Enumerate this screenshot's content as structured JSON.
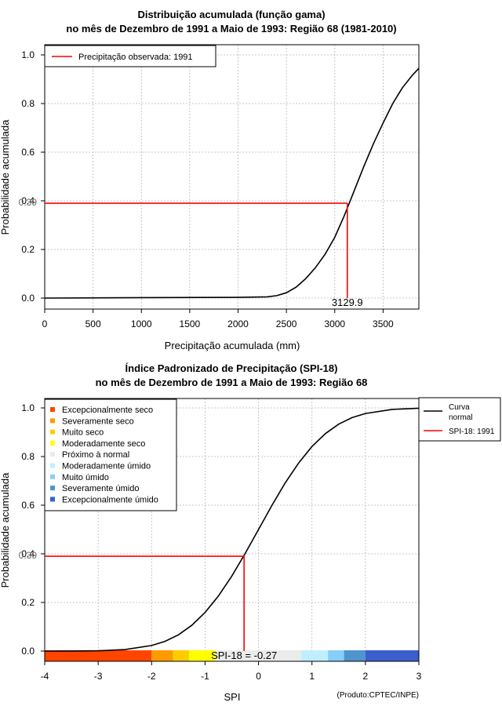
{
  "chart_data": [
    {
      "type": "line",
      "title": "Distribuição acumulada (função gama)",
      "subtitle": "no mês de Dezembro de 1991 a Maio de 1993: Região 68 (1981-2010)",
      "xlabel": "Precipitação acumulada (mm)",
      "ylabel": "Probabilidade acumulada",
      "xlim": [
        0,
        3870
      ],
      "ylim": [
        0,
        1.0
      ],
      "xticks": [
        0,
        500,
        1000,
        1500,
        2000,
        2500,
        3000,
        3500
      ],
      "yticks": [
        0.0,
        0.2,
        0.4,
        0.6,
        0.8,
        1.0
      ],
      "ytick_labels": [
        "0.0",
        "0.2",
        "0.4",
        "0.6",
        "0.8",
        "1.0"
      ],
      "grid": true,
      "series": [
        {
          "name": "gamma-cdf",
          "color": "#000000",
          "x": [
            0,
            1000,
            2000,
            2300,
            2400,
            2500,
            2600,
            2700,
            2800,
            2900,
            3000,
            3100,
            3200,
            3300,
            3400,
            3500,
            3600,
            3700,
            3800,
            3870
          ],
          "y": [
            0,
            0.002,
            0.003,
            0.005,
            0.01,
            0.022,
            0.045,
            0.08,
            0.125,
            0.18,
            0.25,
            0.34,
            0.44,
            0.54,
            0.635,
            0.72,
            0.8,
            0.865,
            0.915,
            0.945
          ]
        }
      ],
      "observed": {
        "x": 3129.9,
        "y": 0.39,
        "x_label": "3129.9",
        "y_label": "0.39",
        "color": "#ff0000"
      },
      "legend": {
        "position": "top-left",
        "entries": [
          {
            "label": "Precipitação observada: 1991",
            "color": "#ff0000"
          }
        ]
      }
    },
    {
      "type": "line",
      "title": "Índice Padronizado de Precipitação (SPI-18)",
      "subtitle": "no mês de Dezembro de 1991 a Maio de 1993: Região 68",
      "xlabel": "SPI",
      "ylabel": "Probabilidade acumulada",
      "xlim": [
        -4,
        3
      ],
      "ylim": [
        0,
        1.0
      ],
      "xticks": [
        -4,
        -3,
        -2,
        -1,
        0,
        1,
        2,
        3
      ],
      "yticks": [
        0.0,
        0.2,
        0.4,
        0.6,
        0.8,
        1.0
      ],
      "ytick_labels": [
        "0.0",
        "0.2",
        "0.4",
        "0.6",
        "0.8",
        "1.0"
      ],
      "grid": true,
      "series": [
        {
          "name": "normal-cdf",
          "color": "#000000",
          "x": [
            -4,
            -3.5,
            -3,
            -2.5,
            -2,
            -1.75,
            -1.5,
            -1.25,
            -1,
            -0.75,
            -0.5,
            -0.25,
            0,
            0.25,
            0.5,
            0.75,
            1,
            1.25,
            1.5,
            1.75,
            2,
            2.5,
            3
          ],
          "y": [
            3.17e-05,
            0.000233,
            0.00135,
            0.00621,
            0.02275,
            0.04006,
            0.06681,
            0.10565,
            0.15866,
            0.22663,
            0.30854,
            0.40129,
            0.5,
            0.59871,
            0.69146,
            0.77337,
            0.84134,
            0.89435,
            0.93319,
            0.95994,
            0.97725,
            0.99379,
            0.99865
          ]
        }
      ],
      "observed": {
        "x": -0.27,
        "y": 0.39,
        "y_label": "0.39",
        "annotation": "SPI-18 = -0.27",
        "color": "#ff0000"
      },
      "color_bar": [
        {
          "from": -4,
          "to": -2,
          "color": "#ff4500"
        },
        {
          "from": -2,
          "to": -1.6,
          "color": "#ff9a00"
        },
        {
          "from": -1.6,
          "to": -1.3,
          "color": "#ffcc00"
        },
        {
          "from": -1.3,
          "to": -0.8,
          "color": "#ffff00"
        },
        {
          "from": -0.8,
          "to": 0.8,
          "color": "#ebebeb"
        },
        {
          "from": 0.8,
          "to": 1.3,
          "color": "#bfefff"
        },
        {
          "from": 1.3,
          "to": 1.6,
          "color": "#87cefa"
        },
        {
          "from": 1.6,
          "to": 2,
          "color": "#4f94cd"
        },
        {
          "from": 2,
          "to": 3,
          "color": "#3a5fcd"
        }
      ],
      "class_legend": [
        {
          "label": "Excepcionalmente seco",
          "color": "#ff4500"
        },
        {
          "label": "Severamente seco",
          "color": "#ff9a00"
        },
        {
          "label": "Muito seco",
          "color": "#ffcc00"
        },
        {
          "label": "Moderadamente seco",
          "color": "#ffff00"
        },
        {
          "label": "Próximo à normal",
          "color": "#ebebeb"
        },
        {
          "label": "Moderadamente úmido",
          "color": "#bfefff"
        },
        {
          "label": "Muito úmido",
          "color": "#87cefa"
        },
        {
          "label": "Severamente úmido",
          "color": "#4f94cd"
        },
        {
          "label": "Excepcionalmente úmido",
          "color": "#3a5fcd"
        }
      ],
      "curve_legend": {
        "position": "top-right",
        "entries": [
          {
            "label_line1": "Curva",
            "label_line2": "normal",
            "color": "#000000"
          },
          {
            "label_line1": "SPI-18: 1991",
            "label_line2": "",
            "color": "#ff0000"
          }
        ]
      },
      "credit": "(Produto:CPTEC/INPE)"
    }
  ]
}
